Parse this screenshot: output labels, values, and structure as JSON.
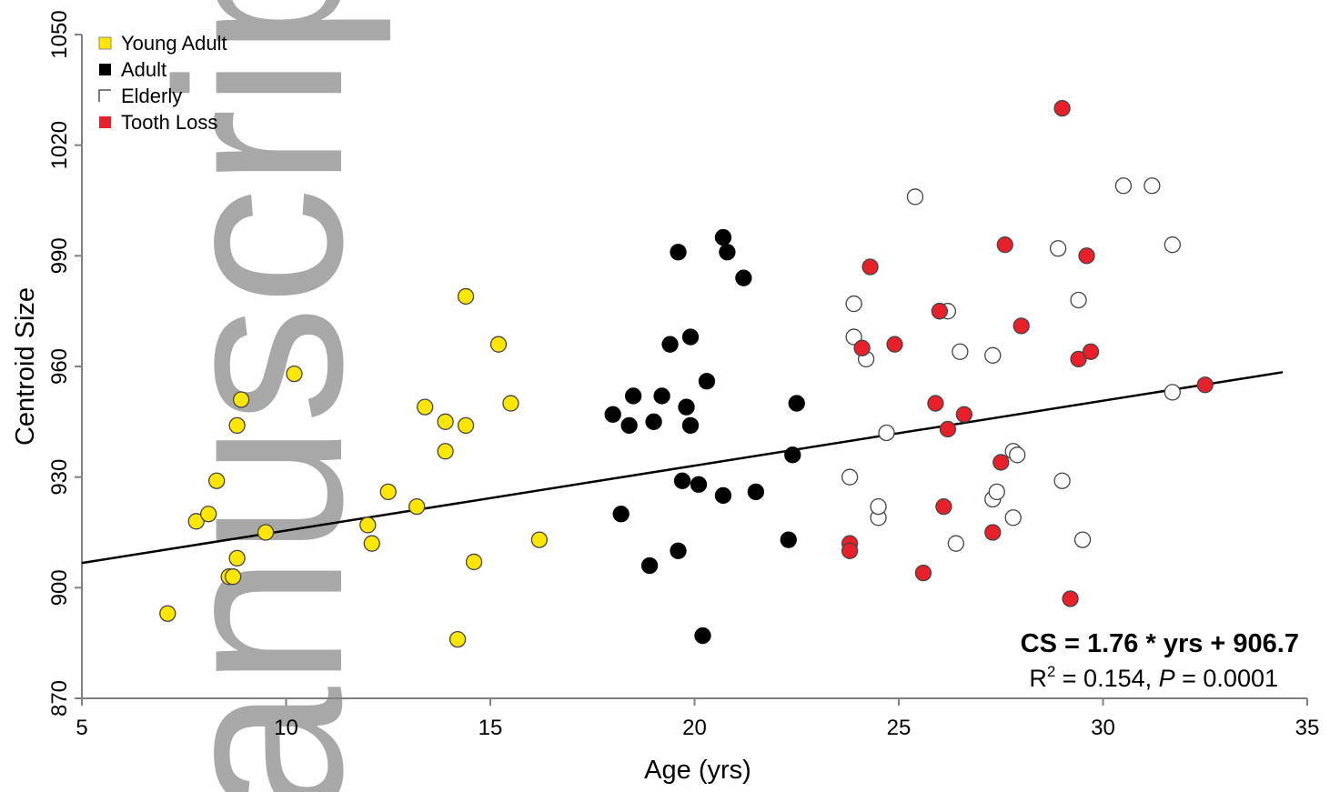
{
  "watermark": "anuscript",
  "chart_data": {
    "type": "scatter",
    "xlabel": "Age (yrs)",
    "ylabel": "Centroid Size",
    "xlim": [
      5,
      35
    ],
    "ylim": [
      870,
      1050
    ],
    "xticks": [
      "5",
      "10",
      "15",
      "20",
      "25",
      "30",
      "35"
    ],
    "yticks": [
      "870",
      "900",
      "930",
      "960",
      "990",
      "1020",
      "1050"
    ],
    "legend_position": "top-left",
    "series": [
      {
        "name": "Young Adult",
        "color": "#ffe600",
        "points": [
          [
            7.1,
            893
          ],
          [
            7.8,
            918
          ],
          [
            8.1,
            920
          ],
          [
            8.3,
            929
          ],
          [
            8.6,
            903
          ],
          [
            8.7,
            903
          ],
          [
            8.8,
            908
          ],
          [
            8.8,
            944
          ],
          [
            8.9,
            951
          ],
          [
            9.5,
            915
          ],
          [
            10.2,
            958
          ],
          [
            12.0,
            917
          ],
          [
            12.1,
            912
          ],
          [
            12.5,
            926
          ],
          [
            13.2,
            922
          ],
          [
            13.4,
            949
          ],
          [
            13.9,
            945
          ],
          [
            13.9,
            937
          ],
          [
            14.2,
            886
          ],
          [
            14.4,
            979
          ],
          [
            14.4,
            944
          ],
          [
            14.6,
            907
          ],
          [
            15.2,
            966
          ],
          [
            15.5,
            950
          ],
          [
            16.2,
            913
          ]
        ]
      },
      {
        "name": "Adult",
        "color": "#000000",
        "points": [
          [
            18.0,
            947
          ],
          [
            18.2,
            920
          ],
          [
            18.4,
            944
          ],
          [
            18.5,
            952
          ],
          [
            18.9,
            906
          ],
          [
            19.0,
            945
          ],
          [
            19.2,
            952
          ],
          [
            19.4,
            966
          ],
          [
            19.6,
            910
          ],
          [
            19.6,
            991
          ],
          [
            19.7,
            929
          ],
          [
            19.8,
            949
          ],
          [
            19.9,
            944
          ],
          [
            19.9,
            968
          ],
          [
            20.1,
            928
          ],
          [
            20.2,
            887
          ],
          [
            20.3,
            956
          ],
          [
            20.7,
            925
          ],
          [
            20.7,
            995
          ],
          [
            20.8,
            991
          ],
          [
            21.2,
            984
          ],
          [
            21.5,
            926
          ],
          [
            22.3,
            913
          ],
          [
            22.4,
            936
          ],
          [
            22.5,
            950
          ]
        ]
      },
      {
        "name": "Elderly",
        "color": "#ffffff",
        "points": [
          [
            23.8,
            930
          ],
          [
            23.9,
            968
          ],
          [
            23.9,
            977
          ],
          [
            24.2,
            962
          ],
          [
            24.5,
            919
          ],
          [
            24.5,
            922
          ],
          [
            24.7,
            942
          ],
          [
            25.4,
            1006
          ],
          [
            26.0,
            975
          ],
          [
            26.2,
            975
          ],
          [
            26.4,
            912
          ],
          [
            26.5,
            964
          ],
          [
            27.3,
            924
          ],
          [
            27.3,
            963
          ],
          [
            27.4,
            926
          ],
          [
            27.8,
            937
          ],
          [
            27.8,
            919
          ],
          [
            27.9,
            936
          ],
          [
            28.9,
            992
          ],
          [
            29.0,
            929
          ],
          [
            29.4,
            978
          ],
          [
            29.5,
            913
          ],
          [
            30.5,
            1009
          ],
          [
            31.2,
            1009
          ],
          [
            31.7,
            993
          ],
          [
            31.7,
            953
          ]
        ]
      },
      {
        "name": "Tooth Loss",
        "color": "#e8202a",
        "points": [
          [
            23.8,
            912
          ],
          [
            23.8,
            910
          ],
          [
            24.1,
            965
          ],
          [
            24.3,
            987
          ],
          [
            24.9,
            966
          ],
          [
            25.6,
            904
          ],
          [
            25.9,
            950
          ],
          [
            26.0,
            975
          ],
          [
            26.1,
            922
          ],
          [
            26.2,
            943
          ],
          [
            26.6,
            947
          ],
          [
            27.3,
            915
          ],
          [
            27.5,
            934
          ],
          [
            27.6,
            993
          ],
          [
            28.0,
            971
          ],
          [
            29.0,
            1030
          ],
          [
            29.2,
            897
          ],
          [
            29.4,
            962
          ],
          [
            29.6,
            990
          ],
          [
            29.7,
            964
          ],
          [
            32.5,
            955
          ]
        ]
      }
    ],
    "regression": {
      "slope": 1.76,
      "intercept": 906.7,
      "equation": "CS = 1.76 * yrs + 906.7",
      "stats_r": "R",
      "stats_sup": "2",
      "stats_mid": " = 0.154, ",
      "stats_p": "P",
      "stats_end": " = 0.0001"
    }
  }
}
